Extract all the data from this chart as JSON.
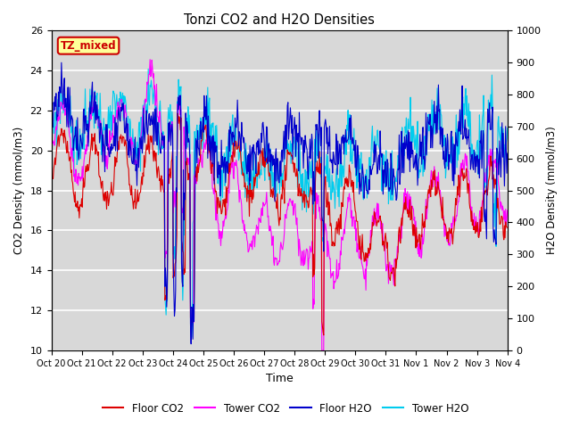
{
  "title": "Tonzi CO2 and H2O Densities",
  "xlabel": "Time",
  "ylabel_left": "CO2 Density (mmol/m3)",
  "ylabel_right": "H2O Density (mmol/m3)",
  "ylim_left": [
    10,
    26
  ],
  "ylim_right": [
    0,
    1000
  ],
  "yticks_left": [
    10,
    12,
    14,
    16,
    18,
    20,
    22,
    24,
    26
  ],
  "yticks_right": [
    0,
    100,
    200,
    300,
    400,
    500,
    600,
    700,
    800,
    900,
    1000
  ],
  "xtick_labels": [
    "Oct 20",
    "Oct 21",
    "Oct 22",
    "Oct 23",
    "Oct 24",
    "Oct 25",
    "Oct 26",
    "Oct 27",
    "Oct 28",
    "Oct 29",
    "Oct 30",
    "Oct 31",
    "Nov 1",
    "Nov 2",
    "Nov 3",
    "Nov 4"
  ],
  "annotation_text": "TZ_mixed",
  "annotation_color": "#cc0000",
  "annotation_bg": "#ffff99",
  "colors": {
    "floor_co2": "#dd0000",
    "tower_co2": "#ff00ff",
    "floor_h2o": "#0000cc",
    "tower_h2o": "#00ccee"
  },
  "legend_labels": [
    "Floor CO2",
    "Tower CO2",
    "Floor H2O",
    "Tower H2O"
  ],
  "plot_bg": "#d8d8d8",
  "num_days": 16,
  "points_per_day": 48,
  "seed": 7
}
